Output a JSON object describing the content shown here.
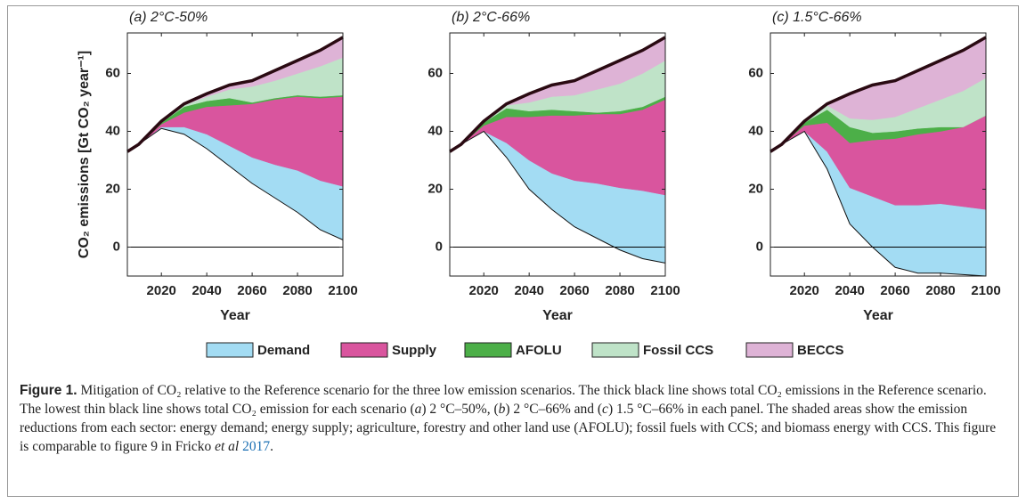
{
  "chart_data": [
    {
      "type": "area",
      "title": "(a) 2°C-50%",
      "ylabel": "CO₂ emissions [Gt CO₂ year⁻¹]",
      "xlabel": "Year",
      "x": [
        2005,
        2010,
        2020,
        2030,
        2040,
        2050,
        2060,
        2070,
        2080,
        2090,
        2100
      ],
      "reference": [
        33,
        35.5,
        43.5,
        49.5,
        53,
        56,
        57.5,
        61,
        64.5,
        68,
        72.5
      ],
      "scenario": [
        33,
        35.5,
        41,
        39,
        34,
        28,
        22,
        17,
        12,
        6,
        2.5
      ],
      "series": [
        {
          "values": [
            0,
            0,
            0.5,
            2.5,
            5,
            7,
            9,
            11.5,
            14.5,
            17,
            18.5
          ]
        },
        {
          "values": [
            0,
            0,
            1,
            5,
            9.5,
            14,
            18.5,
            22.5,
            25.5,
            28.5,
            31
          ]
        },
        {
          "values": [
            0,
            0,
            0.5,
            2,
            2,
            2.5,
            0.5,
            0.5,
            0.5,
            0.5,
            0.5
          ]
        },
        {
          "values": [
            0,
            0,
            0.3,
            0.5,
            1.5,
            3,
            5.5,
            6,
            7.5,
            10.5,
            13
          ]
        },
        {
          "values": [
            0,
            0,
            0.2,
            0.5,
            1,
            1.5,
            2,
            3.5,
            4.5,
            5.5,
            7
          ]
        }
      ],
      "xlim": [
        2005,
        2100
      ],
      "xticks": [
        2020,
        2040,
        2060,
        2080,
        2100
      ],
      "ylim": [
        -10,
        74
      ],
      "yticks": [
        0,
        20,
        40,
        60
      ]
    },
    {
      "type": "area",
      "title": "(b) 2°C-66%",
      "xlabel": "Year",
      "x": [
        2005,
        2010,
        2020,
        2030,
        2040,
        2050,
        2060,
        2070,
        2080,
        2090,
        2100
      ],
      "reference": [
        33,
        35.5,
        43.5,
        49.5,
        53,
        56,
        57.5,
        61,
        64.5,
        68,
        72.5
      ],
      "scenario": [
        33,
        35.5,
        40,
        31,
        20,
        13,
        7,
        3,
        -1,
        -4,
        -5.5
      ],
      "series": [
        {
          "values": [
            0,
            0,
            0,
            5,
            10,
            12.5,
            16,
            19,
            21.5,
            23.5,
            23.5
          ]
        },
        {
          "values": [
            0,
            0,
            2,
            9,
            15,
            20,
            22.5,
            24,
            25.5,
            28,
            33
          ]
        },
        {
          "values": [
            0,
            0,
            1,
            3,
            2,
            2,
            1.5,
            0.5,
            1,
            1,
            1
          ]
        },
        {
          "values": [
            0,
            0,
            0.3,
            1,
            3,
            4.5,
            5.5,
            8,
            9.5,
            11.5,
            12.5
          ]
        },
        {
          "values": [
            0,
            0,
            0.2,
            0.5,
            3,
            4,
            5,
            6.5,
            8,
            8,
            8
          ]
        }
      ],
      "xlim": [
        2005,
        2100
      ],
      "xticks": [
        2020,
        2040,
        2060,
        2080,
        2100
      ],
      "ylim": [
        -10,
        74
      ],
      "yticks": [
        0,
        20,
        40,
        60
      ]
    },
    {
      "type": "area",
      "title": "(c) 1.5°C-66%",
      "xlabel": "Year",
      "x": [
        2005,
        2010,
        2020,
        2030,
        2040,
        2050,
        2060,
        2070,
        2080,
        2090,
        2100
      ],
      "reference": [
        33,
        35.5,
        43.5,
        49.5,
        53,
        56,
        57.5,
        61,
        64.5,
        68,
        72.5
      ],
      "scenario": [
        33,
        35.5,
        40,
        27,
        8,
        0,
        -7,
        -9,
        -9,
        -9.5,
        -10
      ],
      "series": [
        {
          "values": [
            0,
            0,
            0,
            6,
            12.5,
            17.5,
            21.5,
            23.5,
            24,
            23.5,
            23
          ]
        },
        {
          "values": [
            0,
            0,
            2,
            10,
            15.5,
            19.5,
            23,
            24.5,
            25,
            27.5,
            32.5
          ]
        },
        {
          "values": [
            0,
            0,
            1,
            4.5,
            5.5,
            2.5,
            2.5,
            2,
            1.5,
            0,
            0
          ]
        },
        {
          "values": [
            0,
            0,
            0.3,
            1.5,
            3,
            4.5,
            5,
            7,
            9.5,
            12.5,
            13
          ]
        },
        {
          "values": [
            0,
            0,
            0.2,
            0.5,
            8.5,
            12,
            12.5,
            13,
            13.5,
            14,
            14
          ]
        }
      ],
      "xlim": [
        2005,
        2100
      ],
      "xticks": [
        2020,
        2040,
        2060,
        2080,
        2100
      ],
      "ylim": [
        -10,
        74
      ],
      "yticks": [
        0,
        20,
        40,
        60
      ]
    }
  ],
  "legend": [
    {
      "name": "Demand",
      "color": "#a3dcf3"
    },
    {
      "name": "Supply",
      "color": "#d9559e"
    },
    {
      "name": "AFOLU",
      "color": "#4caf48"
    },
    {
      "name": "Fossil CCS",
      "color": "#bfe3c8"
    },
    {
      "name": "BECCS",
      "color": "#deb3d6"
    }
  ],
  "caption": {
    "label": "Figure 1.",
    "parts": [
      " Mitigation of CO₂ relative to the Reference scenario for the three low emission scenarios. The thick black line shows total CO₂ emissions in the Reference scenario. The lowest thin black line shows total CO₂ emission for each scenario (",
      "a",
      ") 2 °C–50%, (",
      "b",
      ") 2 °C–66% and (",
      "c",
      ") 1.5 °C–66% in each panel. The shaded areas show the emission reductions from each sector: energy demand; energy supply; agriculture, forestry and other land use (AFOLU); fossil fuels with CCS; and biomass energy with CCS. This figure is comparable to figure 9 in Fricko ",
      "et al",
      " ",
      "2017",
      "."
    ]
  }
}
